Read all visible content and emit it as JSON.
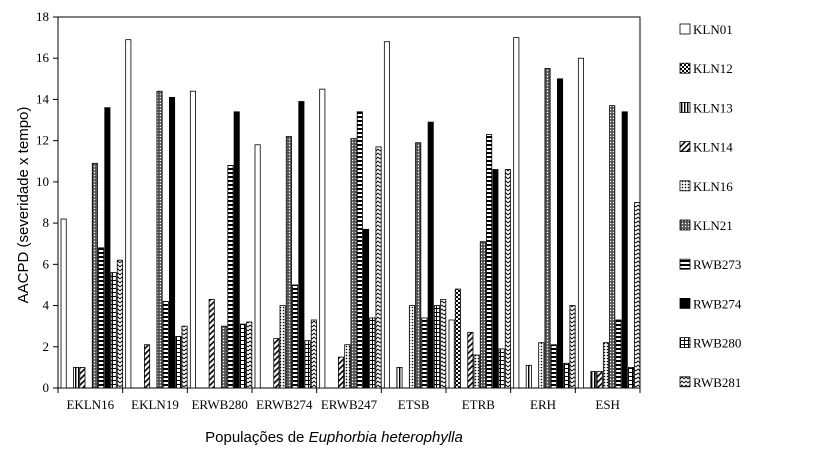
{
  "chart_data": {
    "type": "bar",
    "title": "",
    "ylabel": "AACPD (severidade x tempo)",
    "xlabel_prefix": "Populações de ",
    "xlabel_italic": "Euphorbia heterophylla",
    "ylim": [
      0,
      18
    ],
    "yticks": [
      "0",
      "2",
      "4",
      "6",
      "8",
      "10",
      "12",
      "14",
      "16",
      "18"
    ],
    "grid": false,
    "legend_position": "right",
    "categories": [
      "EKLN16",
      "EKLN19",
      "ERWB280",
      "ERWB274",
      "ERWB247",
      "ETSB",
      "ETRB",
      "ERH",
      "ESH"
    ],
    "series": [
      {
        "name": "KLN01",
        "pattern": "white",
        "values": [
          8.2,
          16.9,
          14.4,
          11.8,
          14.5,
          16.8,
          3.3,
          17.0,
          16.0
        ]
      },
      {
        "name": "KLN12",
        "pattern": "check",
        "values": [
          0,
          0,
          0,
          0,
          0,
          0,
          4.8,
          0,
          0
        ]
      },
      {
        "name": "KLN13",
        "pattern": "vstripe",
        "values": [
          1.0,
          0,
          0,
          0,
          0,
          1.0,
          0,
          1.1,
          0.8
        ]
      },
      {
        "name": "KLN14",
        "pattern": "diag",
        "values": [
          1.0,
          2.1,
          4.3,
          2.4,
          1.5,
          0,
          2.7,
          0,
          0.8
        ]
      },
      {
        "name": "KLN16",
        "pattern": "dots",
        "values": [
          0,
          0,
          0,
          4.0,
          2.1,
          4.0,
          1.6,
          2.2,
          2.2
        ]
      },
      {
        "name": "KLN21",
        "pattern": "dense",
        "values": [
          10.9,
          14.4,
          3.0,
          12.2,
          12.1,
          11.9,
          7.1,
          15.5,
          13.7
        ]
      },
      {
        "name": "RWB273",
        "pattern": "hstripe",
        "values": [
          6.8,
          4.2,
          10.8,
          5.0,
          13.4,
          3.4,
          12.3,
          2.1,
          3.3
        ]
      },
      {
        "name": "RWB274",
        "pattern": "black",
        "values": [
          13.6,
          14.1,
          13.4,
          13.9,
          7.7,
          12.9,
          10.6,
          15.0,
          13.4
        ]
      },
      {
        "name": "RWB280",
        "pattern": "grid",
        "values": [
          5.6,
          2.5,
          3.1,
          2.3,
          3.4,
          4.0,
          1.9,
          1.2,
          1.0
        ]
      },
      {
        "name": "RWB281",
        "pattern": "zigzag",
        "values": [
          6.2,
          3.0,
          3.2,
          3.3,
          11.7,
          4.3,
          10.6,
          4.0,
          9.0
        ]
      }
    ]
  }
}
